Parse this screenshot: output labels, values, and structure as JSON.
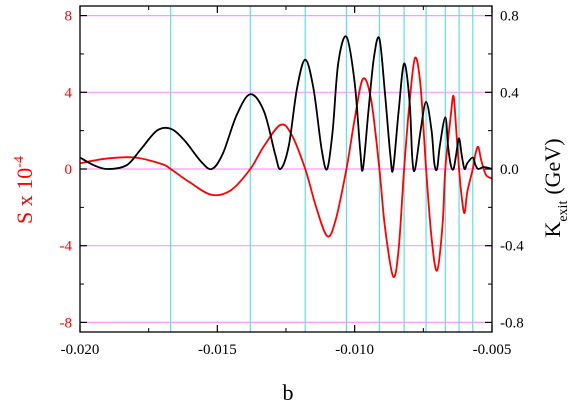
{
  "chart_data": {
    "type": "line",
    "x_axis": {
      "label": "b",
      "range": [
        -0.02,
        -0.005
      ],
      "ticks": [
        -0.02,
        -0.015,
        -0.01,
        -0.005
      ],
      "tick_labels": [
        "-0.020",
        "-0.015",
        "-0.010",
        "-0.005"
      ]
    },
    "y_left": {
      "label_main": "S x 10",
      "label_exponent": "-4",
      "range": [
        -8.5,
        8.5
      ],
      "ticks": [
        -8,
        -4,
        0,
        4,
        8
      ],
      "tick_labels": [
        "-8",
        "-4",
        "0",
        "4",
        "8"
      ],
      "color": "#ff0000"
    },
    "y_right": {
      "label_main": "K",
      "label_subscript": "exit",
      "label_unit": "(GeV)",
      "range": [
        -0.85,
        0.85
      ],
      "ticks": [
        -0.8,
        -0.4,
        0.0,
        0.4,
        0.8
      ],
      "tick_labels": [
        "-0.8",
        "-0.4",
        "0.0",
        "0.4",
        "0.8"
      ],
      "color": "#000000"
    },
    "grid": {
      "horizontal_color": "#ff99ff",
      "vertical_color": "#5fe0e0",
      "vertical_lines_x": [
        -0.0167,
        -0.0138,
        -0.0118,
        -0.0103,
        -0.0091,
        -0.0082,
        -0.0074,
        -0.0067,
        -0.0062,
        -0.0057
      ]
    },
    "series": [
      {
        "axis": "left",
        "color": "#ff0000",
        "points": [
          [
            -0.02,
            0.3
          ],
          [
            -0.019,
            0.55
          ],
          [
            -0.018,
            0.6
          ],
          [
            -0.017,
            0.25
          ],
          [
            -0.0167,
            0.0
          ],
          [
            -0.016,
            -0.7
          ],
          [
            -0.0152,
            -1.35
          ],
          [
            -0.0145,
            -1.1
          ],
          [
            -0.0138,
            0.0
          ],
          [
            -0.0133,
            1.2
          ],
          [
            -0.0127,
            2.3
          ],
          [
            -0.0123,
            1.8
          ],
          [
            -0.0118,
            0.0
          ],
          [
            -0.0114,
            -2.0
          ],
          [
            -0.011,
            -3.5
          ],
          [
            -0.0107,
            -2.7
          ],
          [
            -0.0103,
            0.0
          ],
          [
            -0.01,
            2.6
          ],
          [
            -0.0097,
            4.7
          ],
          [
            -0.0094,
            3.6
          ],
          [
            -0.0091,
            0.0
          ],
          [
            -0.0089,
            -3.0
          ],
          [
            -0.0086,
            -5.6
          ],
          [
            -0.0084,
            -4.2
          ],
          [
            -0.0082,
            0.0
          ],
          [
            -0.008,
            3.5
          ],
          [
            -0.0078,
            5.8
          ],
          [
            -0.0076,
            4.3
          ],
          [
            -0.0074,
            0.0
          ],
          [
            -0.0072,
            -3.6
          ],
          [
            -0.007,
            -5.3
          ],
          [
            -0.0068,
            -2.9
          ],
          [
            -0.0067,
            0.0
          ],
          [
            -0.0065,
            2.8
          ],
          [
            -0.0064,
            3.8
          ],
          [
            -0.0063,
            2.0
          ],
          [
            -0.0062,
            0.0
          ],
          [
            -0.0061,
            -1.5
          ],
          [
            -0.006,
            -2.3
          ],
          [
            -0.0059,
            -1.2
          ],
          [
            -0.0057,
            0.0
          ],
          [
            -0.0056,
            0.8
          ],
          [
            -0.0055,
            1.15
          ],
          [
            -0.0054,
            0.5
          ],
          [
            -0.0053,
            0.0
          ],
          [
            -0.0052,
            -0.35
          ],
          [
            -0.005,
            -0.5
          ]
        ]
      },
      {
        "axis": "right",
        "color": "#000000",
        "points": [
          [
            -0.02,
            0.06
          ],
          [
            -0.0195,
            0.02
          ],
          [
            -0.019,
            0.0
          ],
          [
            -0.0183,
            0.02
          ],
          [
            -0.0178,
            0.1
          ],
          [
            -0.0172,
            0.2
          ],
          [
            -0.0167,
            0.21
          ],
          [
            -0.0162,
            0.15
          ],
          [
            -0.0156,
            0.04
          ],
          [
            -0.0152,
            0.0
          ],
          [
            -0.0148,
            0.08
          ],
          [
            -0.0143,
            0.28
          ],
          [
            -0.0138,
            0.39
          ],
          [
            -0.0133,
            0.3
          ],
          [
            -0.0129,
            0.08
          ],
          [
            -0.0127,
            0.0
          ],
          [
            -0.0124,
            0.12
          ],
          [
            -0.0121,
            0.42
          ],
          [
            -0.0118,
            0.57
          ],
          [
            -0.0115,
            0.42
          ],
          [
            -0.0112,
            0.1
          ],
          [
            -0.011,
            0.0
          ],
          [
            -0.0108,
            0.2
          ],
          [
            -0.0106,
            0.55
          ],
          [
            -0.0103,
            0.69
          ],
          [
            -0.01,
            0.45
          ],
          [
            -0.0098,
            0.1
          ],
          [
            -0.0097,
            0.0
          ],
          [
            -0.0095,
            0.3
          ],
          [
            -0.0093,
            0.58
          ],
          [
            -0.0091,
            0.68
          ],
          [
            -0.0089,
            0.4
          ],
          [
            -0.0087,
            0.07
          ],
          [
            -0.0086,
            0.0
          ],
          [
            -0.0084,
            0.3
          ],
          [
            -0.0082,
            0.55
          ],
          [
            -0.008,
            0.35
          ],
          [
            -0.0079,
            0.05
          ],
          [
            -0.0078,
            0.0
          ],
          [
            -0.0076,
            0.2
          ],
          [
            -0.0074,
            0.35
          ],
          [
            -0.0072,
            0.2
          ],
          [
            -0.0071,
            0.03
          ],
          [
            -0.007,
            0.0
          ],
          [
            -0.0069,
            0.12
          ],
          [
            -0.0067,
            0.27
          ],
          [
            -0.0066,
            0.12
          ],
          [
            -0.0065,
            0.02
          ],
          [
            -0.0064,
            0.0
          ],
          [
            -0.0063,
            0.08
          ],
          [
            -0.0062,
            0.16
          ],
          [
            -0.0061,
            0.07
          ],
          [
            -0.006,
            0.0
          ],
          [
            -0.0059,
            0.03
          ],
          [
            -0.0057,
            0.06
          ],
          [
            -0.0056,
            0.02
          ],
          [
            -0.0055,
            0.0
          ],
          [
            -0.0053,
            0.01
          ],
          [
            -0.005,
            0.0
          ]
        ]
      }
    ]
  }
}
